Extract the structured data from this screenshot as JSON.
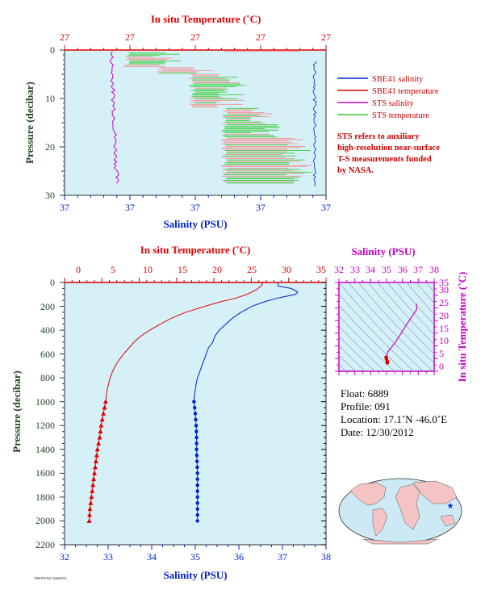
{
  "colors": {
    "panel_bg": "#d6f0f8",
    "temperature": "#e00000",
    "salinity": "#0022cc",
    "sts_salinity": "#cc00cc",
    "sts_temperature": "#33cc33",
    "pressure_axis": "#224422",
    "ts_axis": "#cc00cc"
  },
  "top_panel": {
    "title": "In situ Temperature (˚C)",
    "ylabel": "Pressure (decibar)",
    "xlabel": "Salinity (PSU)",
    "temp_ticks": [
      "27",
      "27",
      "27",
      "27",
      "27"
    ],
    "sal_ticks": [
      "37",
      "37",
      "37",
      "37",
      "37"
    ],
    "pressure_ticks": [
      "0",
      "10",
      "20",
      "30"
    ],
    "legend": [
      "SBE41 salinity",
      "SBE41 temperature",
      "STS salinity",
      "STS temperature"
    ],
    "note": [
      "STS refers to auxiliary",
      "high-resolution near-surface",
      "T-S measurements funded",
      "by NASA."
    ]
  },
  "main_panel": {
    "title": "In situ Temperature (˚C)",
    "ylabel": "Pressure (decibar)",
    "xlabel": "Salinity (PSU)",
    "temp_ticks": [
      "0",
      "5",
      "10",
      "15",
      "20",
      "25",
      "30",
      "35"
    ],
    "sal_ticks": [
      "32",
      "33",
      "34",
      "35",
      "36",
      "37",
      "38"
    ],
    "pressure_ticks": [
      "0",
      "200",
      "400",
      "600",
      "800",
      "1000",
      "1200",
      "1400",
      "1600",
      "1800",
      "2000",
      "2200"
    ]
  },
  "ts_panel": {
    "title": "Salinity (PSU)",
    "ylabel": "In situ Temperature (˚C)",
    "sal_ticks": [
      "32",
      "33",
      "34",
      "35",
      "36",
      "37",
      "38"
    ],
    "temp_ticks": [
      "0",
      "5",
      "10",
      "15",
      "20",
      "25",
      "30",
      "35"
    ]
  },
  "info": {
    "float": "Float:  6889",
    "profile": "Profile:  091",
    "location": "Location:  17.1˚N  -46.0˚E",
    "date": "Date:  12/30/2012"
  },
  "footer_code": "7000 FS0762 123692974",
  "chart_data": [
    {
      "type": "line",
      "name": "main profile",
      "x_temperature_range": [
        0,
        35
      ],
      "x_salinity_range": [
        32,
        38
      ],
      "ylim": [
        2200,
        0
      ],
      "series": [
        {
          "name": "temperature",
          "color": "#e00000",
          "pressure": [
            0,
            10,
            30,
            60,
            100,
            130,
            160,
            200,
            250,
            300,
            350,
            400,
            450,
            500,
            550,
            600,
            650,
            700,
            750,
            800,
            850,
            900,
            950,
            1000,
            1100,
            1200,
            1300,
            1400,
            1500,
            1600,
            1700,
            1800,
            1900,
            2000
          ],
          "values": [
            26.6,
            26.5,
            26.3,
            25.7,
            24.4,
            23.0,
            21.0,
            18.8,
            16.2,
            14.3,
            12.8,
            11.4,
            10.2,
            9.3,
            8.6,
            7.9,
            7.3,
            6.8,
            6.4,
            6.1,
            5.9,
            5.7,
            5.6,
            5.5,
            5.2,
            4.9,
            4.7,
            4.4,
            4.2,
            4.0,
            3.8,
            3.6,
            3.4,
            3.3
          ]
        },
        {
          "name": "salinity",
          "color": "#0022cc",
          "pressure": [
            0,
            10,
            30,
            50,
            80,
            100,
            130,
            160,
            200,
            250,
            300,
            350,
            400,
            450,
            500,
            550,
            600,
            650,
            700,
            750,
            800,
            850,
            900,
            950,
            1000,
            1100,
            1200,
            1300,
            1400,
            1500,
            1600,
            1700,
            1800,
            1900,
            2000
          ],
          "values": [
            36.9,
            36.9,
            36.9,
            37.2,
            37.35,
            37.3,
            36.9,
            36.6,
            36.3,
            36.05,
            35.85,
            35.7,
            35.55,
            35.45,
            35.4,
            35.3,
            35.25,
            35.2,
            35.15,
            35.1,
            35.05,
            35.02,
            35.0,
            34.98,
            34.97,
            35.0,
            35.02,
            35.03,
            35.03,
            35.04,
            35.05,
            35.05,
            35.05,
            35.05,
            35.05
          ]
        }
      ],
      "marked_points_from_pressure": 1000
    },
    {
      "type": "scatter",
      "name": "T-S diagram",
      "xlim": [
        32,
        38
      ],
      "ylim": [
        0,
        35
      ],
      "x": [
        35.05,
        35.04,
        35.0,
        34.97,
        35.0,
        35.1,
        35.3,
        35.55,
        35.85,
        36.3,
        36.9,
        36.9
      ],
      "y": [
        3.3,
        4.0,
        4.9,
        5.5,
        6.1,
        7.9,
        9.3,
        11.4,
        14.3,
        18.8,
        24.4,
        26.6
      ]
    }
  ]
}
